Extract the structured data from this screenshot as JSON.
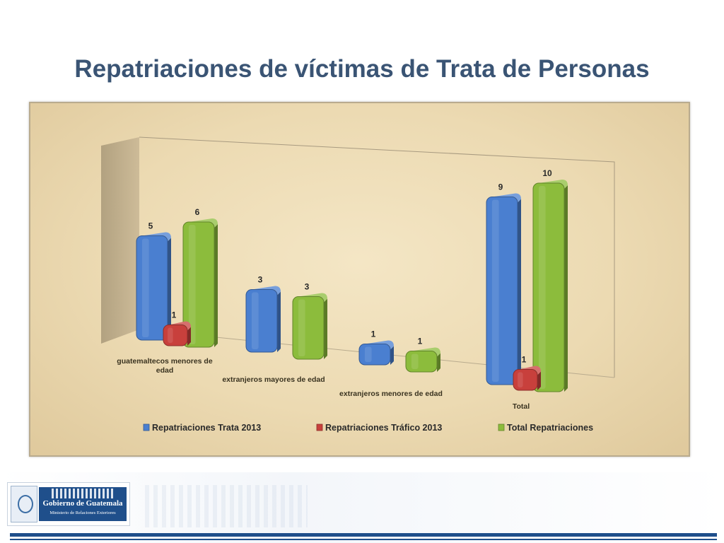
{
  "title": "Repatriaciones de víctimas de Trata de Personas",
  "chart_data": {
    "type": "bar",
    "three_d": true,
    "title": "",
    "xlabel": "",
    "ylabel": "",
    "ylim": [
      0,
      10
    ],
    "grid": false,
    "legend_position": "bottom",
    "data_labels": true,
    "categories": [
      "guatemaltecos menores de edad",
      "extranjeros mayores de edad",
      "extranjeros menores de edad",
      "Total"
    ],
    "category_lines": [
      [
        "guatemaltecos menores de",
        "edad"
      ],
      [
        "extranjeros mayores de edad"
      ],
      [
        "extranjeros menores de edad"
      ],
      [
        "Total"
      ]
    ],
    "series": [
      {
        "name": "Repatriaciones Trata 2013",
        "values": [
          5,
          3,
          1,
          9
        ],
        "color": "#4a7fd0"
      },
      {
        "name": "Repatriaciones  Tráfico 2013",
        "values": [
          1,
          null,
          null,
          1
        ],
        "color": "#c8403c"
      },
      {
        "name": "Total Repatriaciones",
        "values": [
          6,
          3,
          1,
          10
        ],
        "color": "#8cbc3c"
      }
    ]
  },
  "footer": {
    "logo_line1": "Gobierno de Guatemala",
    "logo_line2": "Ministerio de Relaciones Exteriores",
    "colors": {
      "brand": "#1f4f8b",
      "title": "#3a5474"
    }
  }
}
